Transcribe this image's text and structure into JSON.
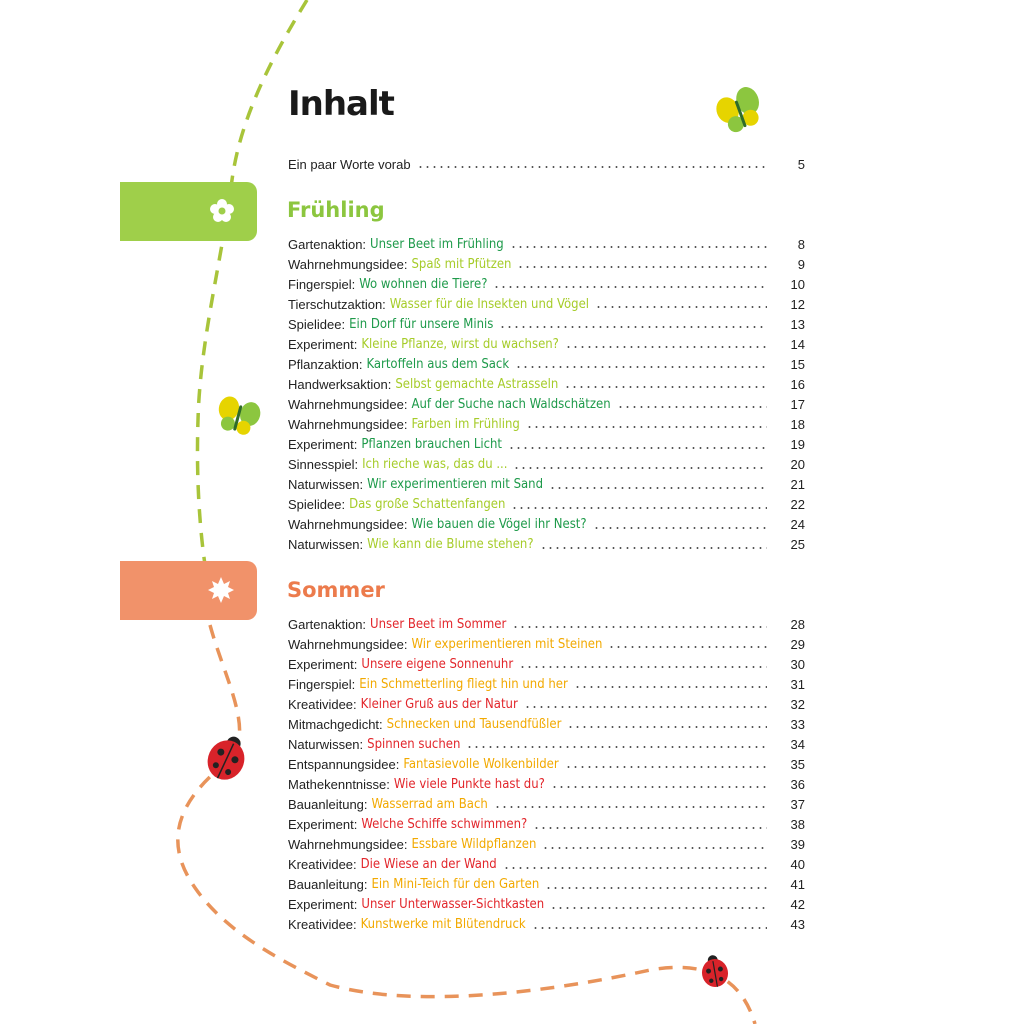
{
  "title": "Inhalt",
  "intro": {
    "title": "Ein paar Worte vorab",
    "page": 5
  },
  "sections": [
    {
      "heading": "Frühling",
      "entries": [
        {
          "category": "Gartenaktion:",
          "title": "Unser Beet im Frühling",
          "page": 8
        },
        {
          "category": "Wahrnehmungsidee:",
          "title": "Spaß mit Pfützen",
          "page": 9
        },
        {
          "category": "Fingerspiel:",
          "title": "Wo wohnen die Tiere?",
          "page": 10
        },
        {
          "category": "Tierschutzaktion:",
          "title": "Wasser für die Insekten und Vögel",
          "page": 12
        },
        {
          "category": "Spielidee:",
          "title": "Ein Dorf für unsere Minis",
          "page": 13
        },
        {
          "category": "Experiment:",
          "title": "Kleine Pflanze, wirst du wachsen?",
          "page": 14
        },
        {
          "category": "Pflanzaktion:",
          "title": "Kartoffeln aus dem Sack",
          "page": 15
        },
        {
          "category": "Handwerksaktion:",
          "title": "Selbst gemachte Astrasseln",
          "page": 16
        },
        {
          "category": "Wahrnehmungsidee:",
          "title": "Auf der Suche nach Waldschätzen",
          "page": 17
        },
        {
          "category": "Wahrnehmungsidee:",
          "title": "Farben im Frühling",
          "page": 18
        },
        {
          "category": "Experiment:",
          "title": "Pflanzen brauchen Licht",
          "page": 19
        },
        {
          "category": "Sinnesspiel:",
          "title": "Ich rieche was, das du ...",
          "page": 20
        },
        {
          "category": "Naturwissen:",
          "title": "Wir experimentieren mit Sand",
          "page": 21
        },
        {
          "category": "Spielidee:",
          "title": "Das große Schattenfangen",
          "page": 22
        },
        {
          "category": "Wahrnehmungsidee:",
          "title": "Wie bauen die Vögel ihr Nest?",
          "page": 24
        },
        {
          "category": "Naturwissen:",
          "title": "Wie kann die Blume stehen?",
          "page": 25
        }
      ]
    },
    {
      "heading": "Sommer",
      "entries": [
        {
          "category": "Gartenaktion:",
          "title": "Unser Beet im Sommer",
          "page": 28
        },
        {
          "category": "Wahrnehmungsidee:",
          "title": "Wir experimentieren mit Steinen",
          "page": 29
        },
        {
          "category": "Experiment:",
          "title": "Unsere eigene Sonnenuhr",
          "page": 30
        },
        {
          "category": "Fingerspiel:",
          "title": "Ein Schmetterling fliegt hin und her",
          "page": 31
        },
        {
          "category": "Kreatividee:",
          "title": "Kleiner Gruß aus der Natur",
          "page": 32
        },
        {
          "category": "Mitmachgedicht:",
          "title": "Schnecken und Tausendfüßler",
          "page": 33
        },
        {
          "category": "Naturwissen:",
          "title": "Spinnen suchen",
          "page": 34
        },
        {
          "category": "Entspannungsidee:",
          "title": "Fantasievolle Wolkenbilder",
          "page": 35
        },
        {
          "category": "Mathekenntnisse:",
          "title": "Wie viele Punkte hast du?",
          "page": 36
        },
        {
          "category": "Bauanleitung:",
          "title": "Wasserrad am Bach",
          "page": 37
        },
        {
          "category": "Experiment:",
          "title": "Welche Schiffe schwimmen?",
          "page": 38
        },
        {
          "category": "Wahrnehmungsidee:",
          "title": "Essbare Wildpflanzen",
          "page": 39
        },
        {
          "category": "Kreatividee:",
          "title": "Die Wiese an der Wand",
          "page": 40
        },
        {
          "category": "Bauanleitung:",
          "title": "Ein Mini-Teich für den Garten",
          "page": 41
        },
        {
          "category": "Experiment:",
          "title": "Unser Unterwasser-Sichtkasten",
          "page": 42
        },
        {
          "category": "Kreatividee:",
          "title": "Kunstwerke mit Blütendruck",
          "page": 43
        }
      ]
    }
  ]
}
